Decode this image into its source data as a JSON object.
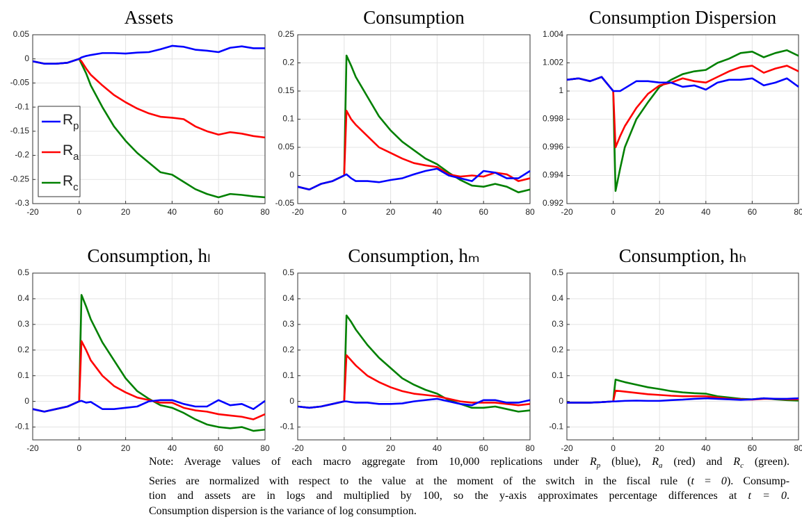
{
  "chart_data": [
    {
      "type": "line",
      "title": "Assets",
      "xlim": [
        -20,
        80
      ],
      "xticks": [
        -20,
        0,
        20,
        40,
        60,
        80
      ],
      "ylim": [
        -0.3,
        0.05
      ],
      "yticks": [
        -0.3,
        -0.25,
        -0.2,
        -0.15,
        -0.1,
        -0.05,
        0,
        0.05
      ],
      "grid": true,
      "legend": "lower left",
      "x": [
        -20,
        -15,
        -10,
        -5,
        0,
        1,
        3,
        5,
        10,
        15,
        20,
        25,
        30,
        35,
        40,
        45,
        50,
        55,
        60,
        65,
        70,
        75,
        80
      ],
      "series": [
        {
          "name": "R",
          "name_sub": "p",
          "color": "#0000ff",
          "values": [
            -0.005,
            -0.01,
            -0.01,
            -0.008,
            0,
            0.003,
            0.006,
            0.008,
            0.012,
            0.012,
            0.011,
            0.013,
            0.014,
            0.02,
            0.027,
            0.025,
            0.019,
            0.017,
            0.014,
            0.023,
            0.026,
            0.022,
            0.022
          ]
        },
        {
          "name": "R",
          "name_sub": "a",
          "color": "#ff0000",
          "values": [
            -0.005,
            -0.01,
            -0.01,
            -0.008,
            0,
            -0.005,
            -0.02,
            -0.033,
            -0.055,
            -0.075,
            -0.09,
            -0.103,
            -0.113,
            -0.12,
            -0.122,
            -0.125,
            -0.14,
            -0.15,
            -0.157,
            -0.152,
            -0.155,
            -0.16,
            -0.163
          ]
        },
        {
          "name": "R",
          "name_sub": "c",
          "color": "#008000",
          "values": [
            -0.005,
            -0.01,
            -0.01,
            -0.008,
            0,
            -0.01,
            -0.03,
            -0.055,
            -0.1,
            -0.14,
            -0.17,
            -0.195,
            -0.215,
            -0.235,
            -0.24,
            -0.255,
            -0.27,
            -0.28,
            -0.287,
            -0.28,
            -0.282,
            -0.285,
            -0.287
          ]
        }
      ]
    },
    {
      "type": "line",
      "title": "Consumption",
      "xlim": [
        -20,
        80
      ],
      "xticks": [
        -20,
        0,
        20,
        40,
        60,
        80
      ],
      "ylim": [
        -0.05,
        0.25
      ],
      "yticks": [
        -0.05,
        0,
        0.05,
        0.1,
        0.15,
        0.2,
        0.25
      ],
      "grid": true,
      "x": [
        -20,
        -15,
        -10,
        -5,
        0,
        1,
        3,
        5,
        10,
        15,
        20,
        25,
        30,
        35,
        40,
        45,
        50,
        55,
        60,
        65,
        70,
        75,
        80
      ],
      "series": [
        {
          "color": "#0000ff",
          "values": [
            -0.02,
            -0.025,
            -0.015,
            -0.01,
            0,
            0.002,
            -0.005,
            -0.01,
            -0.01,
            -0.012,
            -0.008,
            -0.005,
            0.002,
            0.008,
            0.012,
            0.0,
            -0.005,
            -0.01,
            0.008,
            0.005,
            -0.005,
            -0.005,
            0.008
          ]
        },
        {
          "color": "#ff0000",
          "values": [
            -0.02,
            -0.025,
            -0.015,
            -0.01,
            0,
            0.115,
            0.1,
            0.09,
            0.07,
            0.05,
            0.04,
            0.03,
            0.022,
            0.018,
            0.015,
            0.002,
            -0.002,
            0.0,
            -0.002,
            0.005,
            0.002,
            -0.01,
            -0.005
          ]
        },
        {
          "color": "#008000",
          "values": [
            -0.02,
            -0.025,
            -0.015,
            -0.01,
            0,
            0.213,
            0.195,
            0.175,
            0.14,
            0.105,
            0.08,
            0.06,
            0.045,
            0.03,
            0.02,
            0.005,
            -0.008,
            -0.018,
            -0.02,
            -0.015,
            -0.02,
            -0.03,
            -0.025
          ]
        }
      ]
    },
    {
      "type": "line",
      "title": "Consumption Dispersion",
      "xlim": [
        -20,
        80
      ],
      "xticks": [
        -20,
        0,
        20,
        40,
        60,
        80
      ],
      "ylim": [
        0.992,
        1.004
      ],
      "yticks": [
        0.992,
        0.994,
        0.996,
        0.998,
        1,
        1.002,
        1.004
      ],
      "grid": true,
      "x": [
        -20,
        -15,
        -10,
        -5,
        0,
        1,
        3,
        5,
        10,
        15,
        20,
        25,
        30,
        35,
        40,
        45,
        50,
        55,
        60,
        65,
        70,
        75,
        80
      ],
      "series": [
        {
          "color": "#0000ff",
          "values": [
            1.0008,
            1.0009,
            1.0007,
            1.001,
            1.0,
            1.0,
            1.0,
            1.0002,
            1.0007,
            1.0007,
            1.0006,
            1.0006,
            1.0003,
            1.0004,
            1.0001,
            1.0006,
            1.0008,
            1.0008,
            1.0009,
            1.0004,
            1.0006,
            1.0009,
            1.0003
          ]
        },
        {
          "color": "#ff0000",
          "values": [
            1.0008,
            1.0009,
            1.0007,
            1.001,
            1.0,
            0.996,
            0.9968,
            0.9975,
            0.9988,
            0.9998,
            1.0004,
            1.0006,
            1.0009,
            1.0007,
            1.0006,
            1.001,
            1.0014,
            1.0017,
            1.0018,
            1.0013,
            1.0016,
            1.0018,
            1.0014
          ]
        },
        {
          "color": "#008000",
          "values": [
            1.0008,
            1.0009,
            1.0007,
            1.001,
            1.0,
            0.9929,
            0.9945,
            0.996,
            0.998,
            0.9992,
            1.0003,
            1.0008,
            1.0012,
            1.0014,
            1.0015,
            1.002,
            1.0023,
            1.0027,
            1.0028,
            1.0024,
            1.0027,
            1.0029,
            1.0025
          ]
        }
      ]
    },
    {
      "type": "line",
      "title": "Consumption, hₗ",
      "xlim": [
        -20,
        80
      ],
      "xticks": [
        -20,
        0,
        20,
        40,
        60,
        80
      ],
      "ylim": [
        -0.15,
        0.5
      ],
      "yticks": [
        -0.1,
        0,
        0.1,
        0.2,
        0.3,
        0.4,
        0.5
      ],
      "grid": true,
      "x": [
        -20,
        -15,
        -10,
        -5,
        0,
        1,
        3,
        5,
        10,
        15,
        20,
        25,
        30,
        35,
        40,
        45,
        50,
        55,
        60,
        65,
        70,
        75,
        80
      ],
      "series": [
        {
          "color": "#0000ff",
          "values": [
            -0.03,
            -0.04,
            -0.03,
            -0.02,
            0,
            0.002,
            -0.005,
            -0.002,
            -0.03,
            -0.03,
            -0.025,
            -0.02,
            0.0,
            0.005,
            0.005,
            -0.01,
            -0.02,
            -0.02,
            0.005,
            -0.015,
            -0.01,
            -0.03,
            0.002
          ]
        },
        {
          "color": "#ff0000",
          "values": [
            -0.03,
            -0.04,
            -0.03,
            -0.02,
            0,
            0.235,
            0.2,
            0.16,
            0.1,
            0.06,
            0.035,
            0.015,
            0.005,
            -0.005,
            -0.005,
            -0.025,
            -0.035,
            -0.04,
            -0.05,
            -0.055,
            -0.06,
            -0.07,
            -0.05
          ]
        },
        {
          "color": "#008000",
          "values": [
            -0.03,
            -0.04,
            -0.03,
            -0.02,
            0,
            0.415,
            0.37,
            0.32,
            0.23,
            0.16,
            0.09,
            0.04,
            0.01,
            -0.015,
            -0.025,
            -0.045,
            -0.07,
            -0.09,
            -0.1,
            -0.105,
            -0.1,
            -0.115,
            -0.11
          ]
        }
      ]
    },
    {
      "type": "line",
      "title": "Consumption, hₘ",
      "xlim": [
        -20,
        80
      ],
      "xticks": [
        -20,
        0,
        20,
        40,
        60,
        80
      ],
      "ylim": [
        -0.15,
        0.5
      ],
      "yticks": [
        -0.1,
        0,
        0.1,
        0.2,
        0.3,
        0.4,
        0.5
      ],
      "grid": true,
      "x": [
        -20,
        -15,
        -10,
        -5,
        0,
        1,
        3,
        5,
        10,
        15,
        20,
        25,
        30,
        35,
        40,
        45,
        50,
        55,
        60,
        65,
        70,
        75,
        80
      ],
      "series": [
        {
          "color": "#0000ff",
          "values": [
            -0.02,
            -0.025,
            -0.02,
            -0.01,
            0,
            0.0,
            -0.003,
            -0.005,
            -0.005,
            -0.01,
            -0.01,
            -0.008,
            0.0,
            0.005,
            0.01,
            0.0,
            -0.01,
            -0.015,
            0.005,
            0.005,
            -0.005,
            -0.005,
            0.005
          ]
        },
        {
          "color": "#ff0000",
          "values": [
            -0.02,
            -0.025,
            -0.02,
            -0.01,
            0,
            0.18,
            0.16,
            0.14,
            0.1,
            0.075,
            0.055,
            0.04,
            0.03,
            0.025,
            0.02,
            0.01,
            0.0,
            -0.005,
            -0.005,
            -0.005,
            -0.01,
            -0.015,
            -0.01
          ]
        },
        {
          "color": "#008000",
          "values": [
            -0.02,
            -0.025,
            -0.02,
            -0.01,
            0,
            0.335,
            0.31,
            0.28,
            0.22,
            0.17,
            0.13,
            0.09,
            0.065,
            0.045,
            0.03,
            0.005,
            -0.01,
            -0.025,
            -0.025,
            -0.02,
            -0.03,
            -0.04,
            -0.035
          ]
        }
      ]
    },
    {
      "type": "line",
      "title": "Consumption, hₕ",
      "xlim": [
        -20,
        80
      ],
      "xticks": [
        -20,
        0,
        20,
        40,
        60,
        80
      ],
      "ylim": [
        -0.15,
        0.5
      ],
      "yticks": [
        -0.1,
        0,
        0.1,
        0.2,
        0.3,
        0.4,
        0.5
      ],
      "grid": true,
      "x": [
        -20,
        -15,
        -10,
        -5,
        0,
        1,
        3,
        5,
        10,
        15,
        20,
        25,
        30,
        35,
        40,
        45,
        50,
        55,
        60,
        65,
        70,
        75,
        80
      ],
      "series": [
        {
          "color": "#0000ff",
          "values": [
            -0.005,
            -0.005,
            -0.005,
            -0.003,
            0,
            0.0,
            0.001,
            0.002,
            0.003,
            0.002,
            0.002,
            0.005,
            0.007,
            0.01,
            0.012,
            0.01,
            0.008,
            0.006,
            0.008,
            0.012,
            0.01,
            0.01,
            0.012
          ]
        },
        {
          "color": "#ff0000",
          "values": [
            -0.005,
            -0.005,
            -0.005,
            -0.003,
            0,
            0.042,
            0.04,
            0.038,
            0.033,
            0.028,
            0.025,
            0.022,
            0.02,
            0.02,
            0.02,
            0.015,
            0.01,
            0.008,
            0.007,
            0.01,
            0.01,
            0.008,
            0.008
          ]
        },
        {
          "color": "#008000",
          "values": [
            -0.005,
            -0.005,
            -0.005,
            -0.003,
            0,
            0.085,
            0.08,
            0.075,
            0.065,
            0.055,
            0.048,
            0.04,
            0.035,
            0.032,
            0.03,
            0.02,
            0.015,
            0.01,
            0.008,
            0.012,
            0.008,
            0.005,
            0.003
          ]
        }
      ]
    }
  ],
  "note": {
    "lines": [
      [
        "Note: Average values of each macro aggregate from 10,000 replications under ",
        {
          "math": "R",
          "sub": "p"
        },
        " (blue), ",
        {
          "math": "R",
          "sub": "a"
        },
        " (red) and ",
        {
          "math": "R",
          "sub": "c"
        },
        " (green)."
      ],
      [
        "Series are normalized with respect to the value at the moment of the switch in the fiscal rule (",
        {
          "math": "t = 0"
        },
        "). Consump-"
      ],
      [
        "tion and assets are in logs and multiplied by 100, so the y-axis approximates percentage differences at ",
        {
          "math": "t = 0"
        },
        "."
      ],
      [
        "Consumption dispersion is the variance of log consumption."
      ]
    ]
  }
}
